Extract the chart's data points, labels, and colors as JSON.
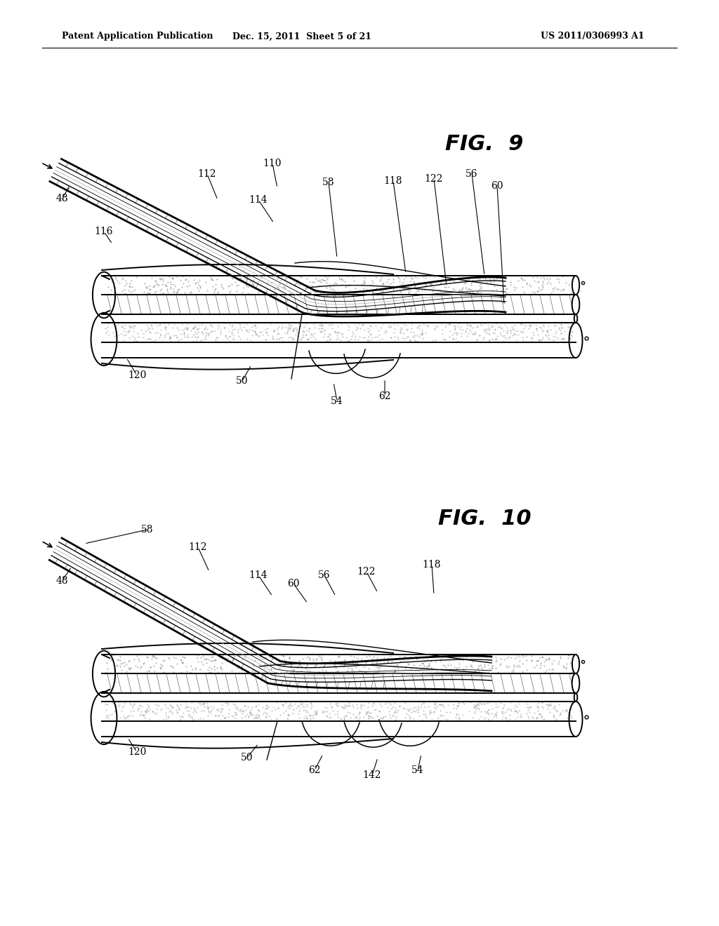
{
  "bg_color": "#ffffff",
  "header_left": "Patent Application Publication",
  "header_mid": "Dec. 15, 2011  Sheet 5 of 21",
  "header_right": "US 2011/0306993 A1",
  "fig9_title": "FIG.  9",
  "fig10_title": "FIG.  10",
  "lw_vessel": 1.4,
  "lw_cath_outer": 2.0,
  "lw_cath_mid": 1.0,
  "lw_cath_inner": 0.6,
  "lw_wire": 1.1,
  "label_fs": 10
}
